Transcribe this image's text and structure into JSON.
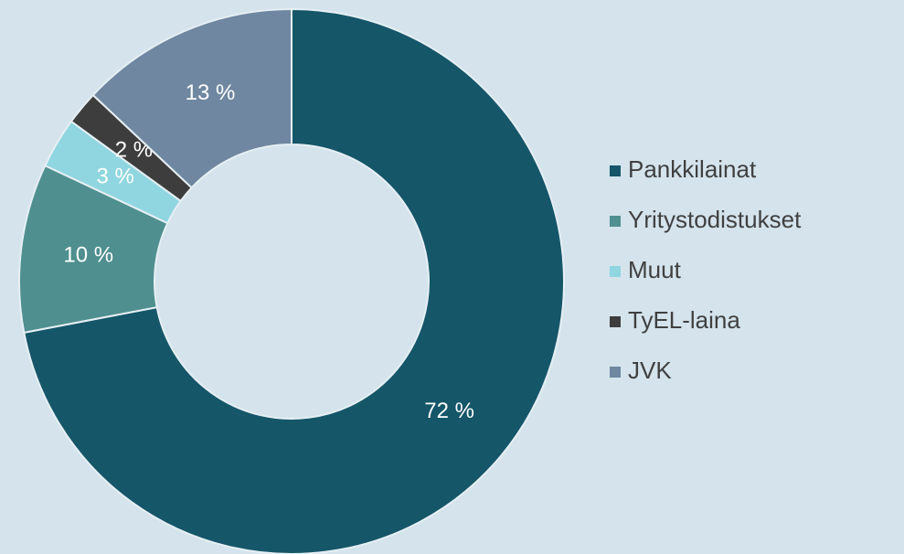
{
  "chart_data": {
    "type": "donut",
    "categories": [
      "Pankkilainat",
      "Yritystodistukset",
      "Muut",
      "TyEL-laina",
      "JVK"
    ],
    "values": [
      72,
      10,
      3,
      2,
      13
    ],
    "value_labels": [
      "72 %",
      "10 %",
      "3 %",
      "2 %",
      "13 %"
    ],
    "colors": [
      "#155669",
      "#4f8f8f",
      "#8fd6e0",
      "#3d3d3d",
      "#6f87a0"
    ],
    "legend": "right"
  }
}
